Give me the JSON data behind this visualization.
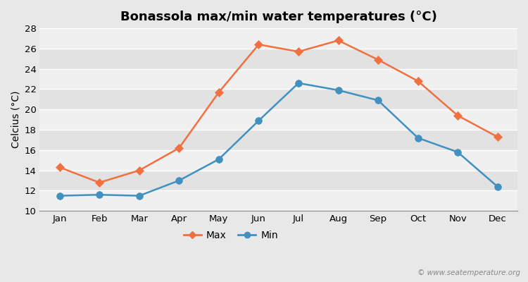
{
  "title": "Bonassola max/min water temperatures (°C)",
  "ylabel": "Celcius (°C)",
  "months": [
    "Jan",
    "Feb",
    "Mar",
    "Apr",
    "May",
    "Jun",
    "Jul",
    "Aug",
    "Sep",
    "Oct",
    "Nov",
    "Dec"
  ],
  "max_temps": [
    14.3,
    12.8,
    14.0,
    16.2,
    21.7,
    26.4,
    25.7,
    26.8,
    24.9,
    22.8,
    19.4,
    17.3
  ],
  "min_temps": [
    11.5,
    11.6,
    11.5,
    13.0,
    15.1,
    18.9,
    22.6,
    21.9,
    20.9,
    17.2,
    15.8,
    12.4
  ],
  "max_color": "#f07040",
  "min_color": "#4090c0",
  "fig_bg_color": "#e8e8e8",
  "plot_bg_color": "#e8e8e8",
  "band_color_light": "#f0f0f0",
  "band_color_dark": "#e2e2e2",
  "grid_color": "#ffffff",
  "ylim": [
    10,
    28
  ],
  "yticks": [
    10,
    12,
    14,
    16,
    18,
    20,
    22,
    24,
    26,
    28
  ],
  "legend_labels": [
    "Max",
    "Min"
  ],
  "watermark": "© www.seatemperature.org",
  "max_marker": "D",
  "min_marker": "o",
  "markersize_max": 6,
  "markersize_min": 7,
  "linewidth": 1.8,
  "title_fontsize": 13,
  "label_fontsize": 10,
  "tick_fontsize": 9.5,
  "watermark_fontsize": 7.5
}
